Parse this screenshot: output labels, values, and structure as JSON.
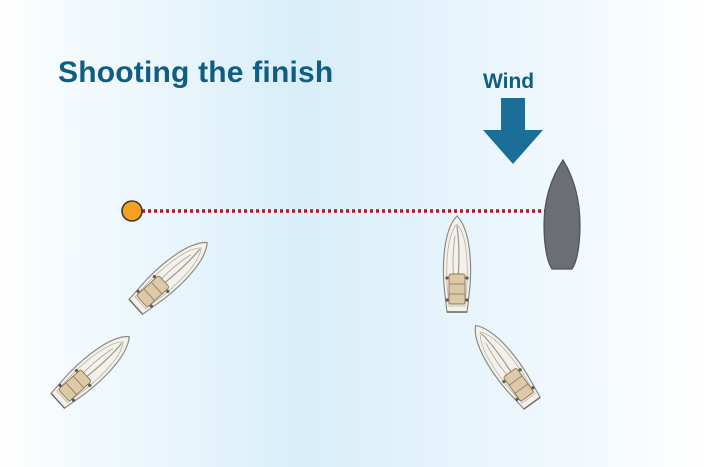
{
  "diagram": {
    "title": "Shooting the finish",
    "wind_label": "Wind",
    "colors": {
      "title": "#0f5d82",
      "wind_arrow": "#1a6e97",
      "finish_line": "#b0182a",
      "pin_buoy": "#f5a01f",
      "committee_boat": "#6b6e73",
      "sailboat_hull": "#f3f1ea",
      "sailboat_deck": "#dcc9a8"
    },
    "elements": {
      "pin_buoy": "pin-end-buoy",
      "finish_line": "finish-line",
      "committee_boat": "committee-boat",
      "wind_arrow": "wind-arrow-icon",
      "sailboats": [
        "sailboat",
        "sailboat",
        "sailboat",
        "sailboat"
      ]
    }
  }
}
